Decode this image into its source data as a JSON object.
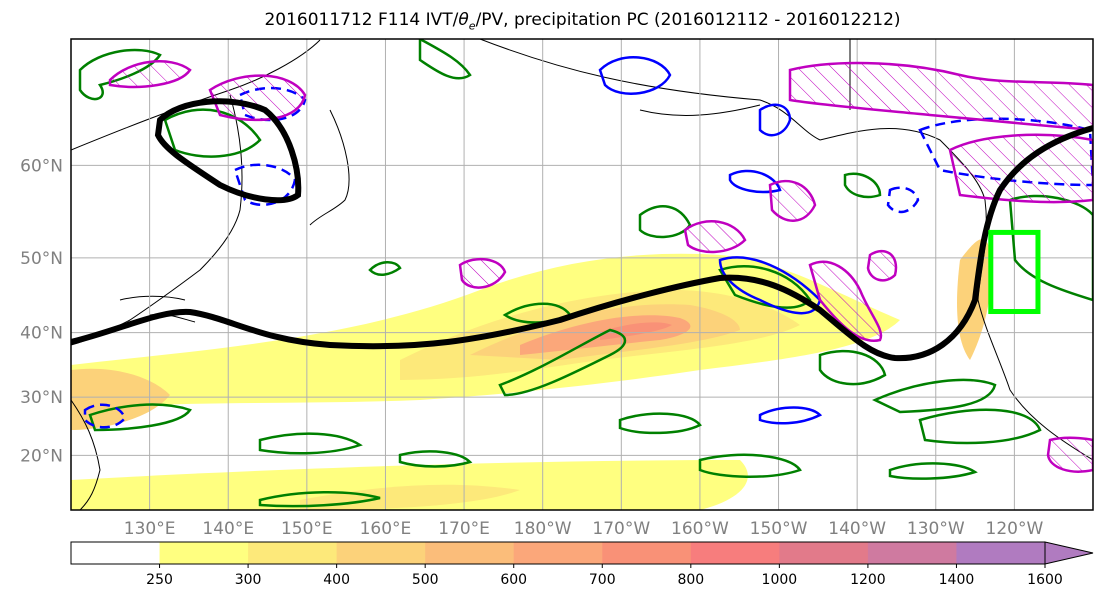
{
  "title": {
    "prefix": "2016011712 F114 IVT/",
    "theta": "θ",
    "theta_sub": "e",
    "suffix": "/PV, precipitation PC (2016012112 - 2016012212)"
  },
  "map": {
    "lat_labels": [
      "60°N",
      "50°N",
      "40°N",
      "30°N",
      "20°N"
    ],
    "lon_labels": [
      "130°E",
      "140°E",
      "150°E",
      "160°E",
      "170°E",
      "180°W",
      "170°W",
      "160°W",
      "150°W",
      "140°W",
      "130°W",
      "120°W"
    ],
    "lat_values": [
      60,
      50,
      40,
      30,
      20
    ],
    "lon_values": [
      130,
      140,
      150,
      160,
      170,
      180,
      190,
      200,
      210,
      220,
      230,
      240
    ],
    "lon_range": [
      120,
      250
    ],
    "lat_range": [
      10,
      70
    ],
    "label_color": "#808080",
    "grid_color": "#b0b0b0",
    "contour_colors": {
      "pv_positive": "#0000ff",
      "pv_negative_dashed": "#0000ff",
      "theta_e": "#008000",
      "hatched": "#c000c0",
      "jet_axis": "#000000",
      "target_box": "#00ff00"
    },
    "target_box": {
      "lon": [
        237,
        243
      ],
      "lat": [
        43,
        53
      ]
    }
  },
  "colorbar": {
    "ticks": [
      "250",
      "300",
      "400",
      "500",
      "600",
      "700",
      "800",
      "1000",
      "1200",
      "1400",
      "1600"
    ],
    "colors": [
      "#ffffff",
      "#ffff80",
      "#fde97a",
      "#fcd27a",
      "#fbbd7a",
      "#fba77a",
      "#f99177",
      "#f77d7d",
      "#e27a8a",
      "#cf7aa0",
      "#b07bc0"
    ],
    "extend": "max"
  }
}
